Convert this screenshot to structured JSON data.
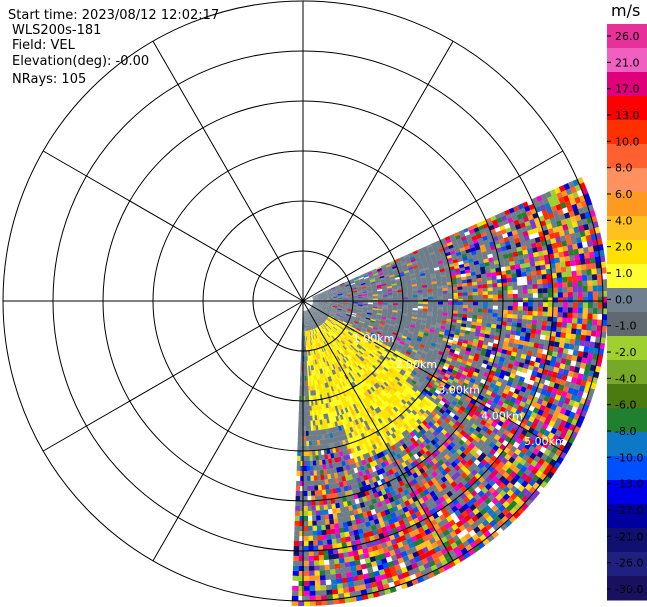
{
  "header": {
    "start_time": "Start time: 2023/08/12 12:02:17",
    "instrument": "WLS200s-181",
    "field": "Field: VEL",
    "elevation": "Elevation(deg): -0.00",
    "nrays": "NRays: 105"
  },
  "chart_data": {
    "type": "ppi",
    "field": "VEL",
    "units": "m/s",
    "range_rings_km": [
      1.0,
      2.0,
      3.0,
      4.0,
      5.0
    ],
    "range_labels": [
      "m",
      "1.00km",
      "2.00km",
      "3.00km",
      "4.00km",
      "5.00km"
    ],
    "sector_deg": {
      "from_azimuth": 66,
      "to_azimuth": 182
    },
    "scale": {
      "min": -30.0,
      "max": 30.0
    },
    "colorbar": {
      "unit": "m/s",
      "ticks": [
        "26.0",
        "21.0",
        "17.0",
        "13.0",
        "10.0",
        "8.0",
        "6.0",
        "4.0",
        "2.0",
        "1.0",
        "0.0",
        "-1.0",
        "-2.0",
        "-4.0",
        "-6.0",
        "-8.0",
        "-10.0",
        "-13.0",
        "-17.0",
        "-21.0",
        "-26.0",
        "-30.0"
      ],
      "colors": [
        "#e8309a",
        "#f060c0",
        "#e0007a",
        "#ff0000",
        "#ff3000",
        "#ff6030",
        "#ff9060",
        "#ff9a20",
        "#ffc020",
        "#ffe000",
        "#ffff30",
        "#708090",
        "#606870",
        "#9ed030",
        "#78a828",
        "#4a7a10",
        "#208030",
        "#0e78c8",
        "#0050ff",
        "#0000e8",
        "#0000a0",
        "#101070",
        "#202080",
        "#1a1060"
      ]
    }
  },
  "colors": {
    "background": "#ffffff",
    "grid": "#000000",
    "low_signal": "#6e7d8a"
  }
}
